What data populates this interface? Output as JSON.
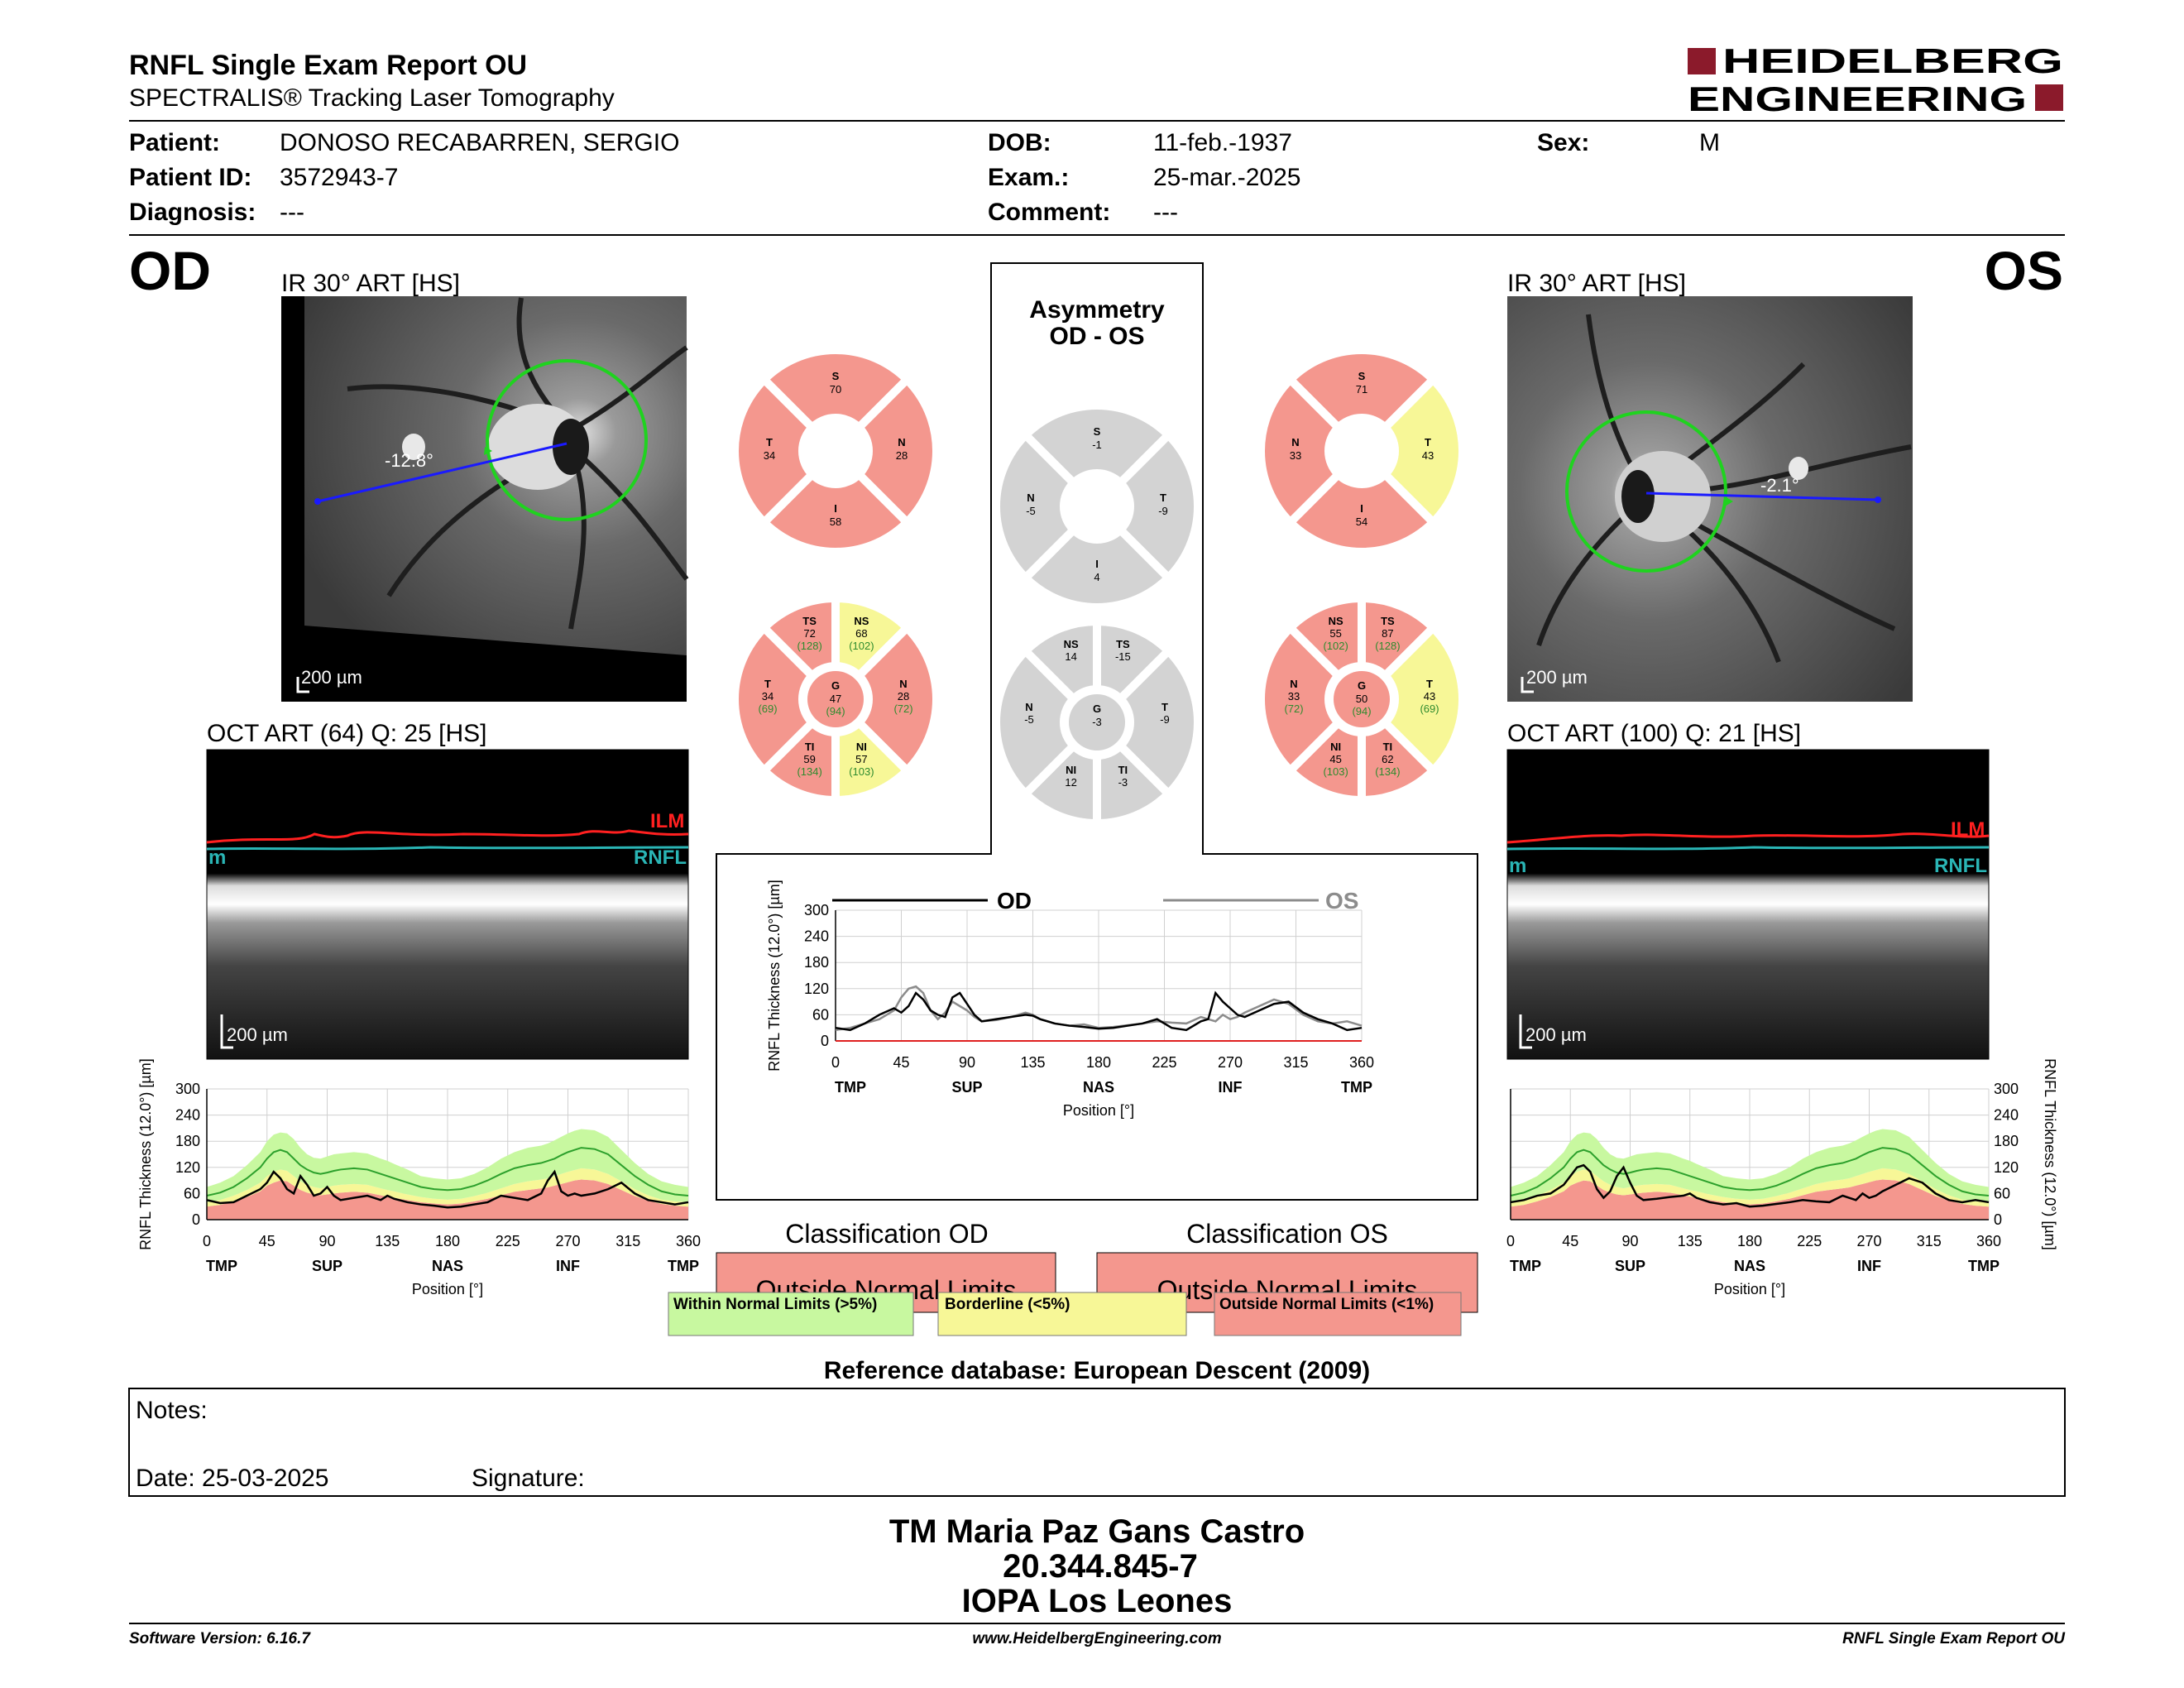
{
  "header": {
    "title": "RNFL Single Exam Report OU",
    "subtitle": "SPECTRALIS® Tracking Laser Tomography",
    "logo_line1": "HEIDELBERG",
    "logo_line2": "ENGINEERING",
    "logo_color": "#8b1a2b"
  },
  "patient": {
    "patient_label": "Patient:",
    "patient_value": "DONOSO RECABARREN, SERGIO",
    "id_label": "Patient ID:",
    "id_value": "3572943-7",
    "diag_label": "Diagnosis:",
    "diag_value": "---",
    "dob_label": "DOB:",
    "dob_value": "11-feb.-1937",
    "exam_label": "Exam.:",
    "exam_value": "25-mar.-2025",
    "comment_label": "Comment:",
    "comment_value": "---",
    "sex_label": "Sex:",
    "sex_value": "M"
  },
  "colors": {
    "red": "#f4978e",
    "yellow": "#f7f797",
    "green": "#c8f8a0",
    "gray": "#d3d3d3",
    "ilm": "#ff2020",
    "rnfl": "#2ab5b5",
    "normal_line": "#2ca02c",
    "od_line": "#000000",
    "os_line": "#8c8c8c"
  },
  "od": {
    "eye_label": "OD",
    "ir_title": "IR 30° ART [HS]",
    "angle": "-12.8°",
    "scale": "200 µm",
    "oct_title": "OCT ART (64) Q: 25 [HS]",
    "ilm": "ILM",
    "rnfl": "RNFL",
    "rnfl_left": "m",
    "oct_scale": "200 µm",
    "sectors4": {
      "S": "70",
      "N": "28",
      "I": "58",
      "T": "34"
    },
    "sectors6": {
      "TS": {
        "v": "72",
        "n": "(128)"
      },
      "NS": {
        "v": "68",
        "n": "(102)"
      },
      "N": {
        "v": "28",
        "n": "(72)"
      },
      "NI": {
        "v": "57",
        "n": "(103)"
      },
      "TI": {
        "v": "59",
        "n": "(134)"
      },
      "T": {
        "v": "34",
        "n": "(69)"
      },
      "G": {
        "v": "47",
        "n": "(94)"
      }
    }
  },
  "os": {
    "eye_label": "OS",
    "ir_title": "IR 30° ART [HS]",
    "angle": "-2.1°",
    "scale": "200 µm",
    "oct_title": "OCT ART (100) Q: 21 [HS]",
    "ilm": "ILM",
    "rnfl": "RNFL",
    "rnfl_left": "m",
    "oct_scale": "200 µm",
    "sectors4": {
      "S": "71",
      "N": "33",
      "I": "54",
      "T": "43"
    },
    "sectors6": {
      "NS": {
        "v": "55",
        "n": "(102)"
      },
      "TS": {
        "v": "87",
        "n": "(128)"
      },
      "T": {
        "v": "43",
        "n": "(69)"
      },
      "TI": {
        "v": "62",
        "n": "(134)"
      },
      "NI": {
        "v": "45",
        "n": "(103)"
      },
      "N": {
        "v": "33",
        "n": "(72)"
      },
      "G": {
        "v": "50",
        "n": "(94)"
      }
    }
  },
  "asym": {
    "title1": "Asymmetry",
    "title2": "OD - OS",
    "sectors4": {
      "S": "-1",
      "N": "-5",
      "I": "4",
      "T": "-9"
    },
    "sectors6": {
      "NS": "14",
      "TS": "-15",
      "T": "-9",
      "TI": "-3",
      "NI": "12",
      "N": "-5",
      "G": "-3"
    }
  },
  "labels": {
    "S": "S",
    "N": "N",
    "I": "I",
    "T": "T",
    "TS": "TS",
    "NS": "NS",
    "NI": "NI",
    "TI": "TI",
    "G": "G"
  },
  "chart_data": [
    {
      "type": "line",
      "name": "OD RNFL thickness profile",
      "ylabel": "RNFL Thickness (12.0°) [µm]",
      "xlabel": "Position [°]",
      "xlim": [
        0,
        360
      ],
      "ylim": [
        0,
        300
      ],
      "x_ticks": [
        0,
        45,
        90,
        135,
        180,
        225,
        270,
        315,
        360
      ],
      "y_ticks": [
        0,
        60,
        120,
        180,
        240,
        300
      ],
      "region_labels": [
        "TMP",
        "SUP",
        "NAS",
        "INF",
        "TMP"
      ],
      "region_positions": [
        0,
        90,
        180,
        270,
        360
      ],
      "x": [
        0,
        10,
        20,
        30,
        40,
        45,
        50,
        55,
        60,
        65,
        70,
        75,
        80,
        85,
        90,
        95,
        100,
        110,
        120,
        130,
        135,
        140,
        150,
        160,
        170,
        180,
        190,
        200,
        210,
        220,
        230,
        240,
        250,
        255,
        260,
        265,
        270,
        275,
        280,
        290,
        300,
        310,
        320,
        330,
        340,
        350,
        360
      ],
      "series": [
        {
          "name": "OD",
          "values": [
            45,
            38,
            40,
            55,
            70,
            85,
            110,
            95,
            70,
            60,
            100,
            80,
            55,
            60,
            75,
            55,
            45,
            50,
            55,
            45,
            55,
            48,
            40,
            35,
            32,
            28,
            30,
            35,
            40,
            55,
            50,
            45,
            60,
            90,
            110,
            65,
            55,
            60,
            55,
            60,
            70,
            85,
            60,
            45,
            40,
            35,
            40
          ]
        },
        {
          "name": "normal",
          "values": [
            55,
            62,
            75,
            95,
            120,
            140,
            155,
            160,
            155,
            140,
            125,
            115,
            108,
            105,
            108,
            112,
            115,
            118,
            115,
            105,
            100,
            95,
            85,
            75,
            70,
            68,
            70,
            78,
            90,
            105,
            118,
            125,
            130,
            135,
            140,
            148,
            155,
            160,
            165,
            162,
            150,
            125,
            100,
            80,
            65,
            58,
            55
          ]
        },
        {
          "name": "normal_upper",
          "values": [
            75,
            85,
            100,
            125,
            155,
            180,
            195,
            200,
            198,
            185,
            165,
            150,
            142,
            140,
            145,
            150,
            152,
            155,
            152,
            140,
            135,
            128,
            115,
            100,
            95,
            92,
            95,
            105,
            120,
            140,
            155,
            165,
            170,
            175,
            182,
            190,
            198,
            204,
            208,
            205,
            190,
            160,
            130,
            105,
            88,
            80,
            75
          ]
        },
        {
          "name": "normal_5pct",
          "values": [
            40,
            45,
            55,
            68,
            85,
            100,
            110,
            115,
            112,
            100,
            88,
            80,
            75,
            72,
            75,
            78,
            80,
            82,
            80,
            72,
            68,
            65,
            58,
            52,
            48,
            46,
            48,
            54,
            62,
            72,
            82,
            88,
            92,
            95,
            100,
            105,
            110,
            114,
            118,
            115,
            105,
            88,
            70,
            56,
            46,
            42,
            40
          ]
        },
        {
          "name": "normal_1pct",
          "values": [
            30,
            34,
            42,
            52,
            65,
            78,
            85,
            90,
            88,
            78,
            68,
            62,
            58,
            56,
            58,
            60,
            62,
            64,
            62,
            56,
            53,
            50,
            45,
            40,
            37,
            35,
            37,
            42,
            48,
            56,
            64,
            68,
            72,
            74,
            78,
            82,
            86,
            90,
            92,
            90,
            82,
            68,
            54,
            44,
            36,
            32,
            30
          ]
        }
      ]
    },
    {
      "type": "line",
      "name": "OS RNFL thickness profile",
      "ylabel": "RNFL Thickness (12.0°) [µm]",
      "xlabel": "Position [°]",
      "xlim": [
        0,
        360
      ],
      "ylim": [
        0,
        300
      ],
      "x_ticks": [
        0,
        45,
        90,
        135,
        180,
        225,
        270,
        315,
        360
      ],
      "y_ticks": [
        0,
        60,
        120,
        180,
        240,
        300
      ],
      "region_labels": [
        "TMP",
        "SUP",
        "NAS",
        "INF",
        "TMP"
      ],
      "region_positions": [
        0,
        90,
        180,
        270,
        360
      ],
      "x": [
        0,
        10,
        20,
        30,
        40,
        45,
        50,
        55,
        60,
        65,
        70,
        75,
        80,
        85,
        90,
        95,
        100,
        110,
        120,
        130,
        135,
        140,
        150,
        160,
        170,
        180,
        190,
        200,
        210,
        220,
        230,
        240,
        250,
        255,
        260,
        265,
        270,
        275,
        280,
        290,
        300,
        310,
        320,
        330,
        340,
        350,
        360
      ],
      "series": [
        {
          "name": "OS",
          "values": [
            40,
            45,
            55,
            60,
            80,
            100,
            120,
            125,
            110,
            70,
            50,
            65,
            100,
            120,
            85,
            55,
            45,
            48,
            52,
            55,
            60,
            50,
            40,
            35,
            38,
            30,
            32,
            36,
            40,
            45,
            42,
            40,
            55,
            50,
            45,
            60,
            50,
            55,
            65,
            80,
            95,
            85,
            60,
            45,
            40,
            45,
            40
          ]
        },
        {
          "name": "normal",
          "values": [
            55,
            62,
            75,
            95,
            120,
            140,
            155,
            160,
            155,
            140,
            125,
            115,
            108,
            105,
            108,
            112,
            115,
            118,
            115,
            105,
            100,
            95,
            85,
            75,
            70,
            68,
            70,
            78,
            90,
            105,
            118,
            125,
            130,
            135,
            140,
            148,
            155,
            160,
            165,
            162,
            150,
            125,
            100,
            80,
            65,
            58,
            55
          ]
        },
        {
          "name": "normal_upper",
          "values": [
            75,
            85,
            100,
            125,
            155,
            180,
            195,
            200,
            198,
            185,
            165,
            150,
            142,
            140,
            145,
            150,
            152,
            155,
            152,
            140,
            135,
            128,
            115,
            100,
            95,
            92,
            95,
            105,
            120,
            140,
            155,
            165,
            170,
            175,
            182,
            190,
            198,
            204,
            208,
            205,
            190,
            160,
            130,
            105,
            88,
            80,
            75
          ]
        },
        {
          "name": "normal_5pct",
          "values": [
            40,
            45,
            55,
            68,
            85,
            100,
            110,
            115,
            112,
            100,
            88,
            80,
            75,
            72,
            75,
            78,
            80,
            82,
            80,
            72,
            68,
            65,
            58,
            52,
            48,
            46,
            48,
            54,
            62,
            72,
            82,
            88,
            92,
            95,
            100,
            105,
            110,
            114,
            118,
            115,
            105,
            88,
            70,
            56,
            46,
            42,
            40
          ]
        },
        {
          "name": "normal_1pct",
          "values": [
            30,
            34,
            42,
            52,
            65,
            78,
            85,
            90,
            88,
            78,
            68,
            62,
            58,
            56,
            58,
            60,
            62,
            64,
            62,
            56,
            53,
            50,
            45,
            40,
            37,
            35,
            37,
            42,
            48,
            56,
            64,
            68,
            72,
            74,
            78,
            82,
            86,
            90,
            92,
            90,
            82,
            68,
            54,
            44,
            36,
            32,
            30
          ]
        }
      ]
    },
    {
      "type": "line",
      "name": "OD vs OS comparison",
      "ylabel": "RNFL Thickness (12.0°) [µm]",
      "xlabel": "Position [°]",
      "xlim": [
        0,
        360
      ],
      "ylim": [
        0,
        300
      ],
      "x_ticks": [
        0,
        45,
        90,
        135,
        180,
        225,
        270,
        315,
        360
      ],
      "y_ticks": [
        0,
        60,
        120,
        180,
        240,
        300
      ],
      "region_labels": [
        "TMP",
        "SUP",
        "NAS",
        "INF",
        "TMP"
      ],
      "region_positions": [
        0,
        90,
        180,
        270,
        360
      ],
      "legend": [
        "OD",
        "OS"
      ],
      "x": [
        0,
        10,
        20,
        30,
        40,
        45,
        50,
        55,
        60,
        65,
        70,
        75,
        80,
        85,
        90,
        95,
        100,
        110,
        120,
        130,
        135,
        140,
        150,
        160,
        170,
        180,
        190,
        200,
        210,
        220,
        230,
        240,
        250,
        255,
        260,
        265,
        270,
        275,
        280,
        290,
        300,
        310,
        320,
        330,
        340,
        350,
        360
      ],
      "series": [
        {
          "name": "OD",
          "values": [
            30,
            25,
            40,
            60,
            75,
            65,
            80,
            110,
            95,
            70,
            60,
            55,
            100,
            110,
            85,
            60,
            45,
            50,
            55,
            60,
            58,
            50,
            40,
            35,
            32,
            28,
            30,
            35,
            40,
            50,
            30,
            25,
            45,
            50,
            110,
            90,
            75,
            60,
            55,
            70,
            85,
            90,
            65,
            50,
            40,
            25,
            30
          ]
        },
        {
          "name": "OS",
          "values": [
            25,
            30,
            40,
            50,
            70,
            100,
            120,
            125,
            110,
            70,
            50,
            65,
            90,
            80,
            70,
            55,
            45,
            48,
            55,
            65,
            60,
            50,
            40,
            35,
            38,
            30,
            32,
            36,
            40,
            45,
            42,
            40,
            55,
            50,
            45,
            60,
            50,
            55,
            65,
            80,
            95,
            85,
            60,
            45,
            40,
            45,
            35
          ]
        }
      ]
    }
  ],
  "comparison": {
    "legend_od": "OD",
    "legend_os": "OS"
  },
  "classification": {
    "od_title": "Classification OD",
    "od_value": "Outside Normal Limits",
    "os_title": "Classification OS",
    "os_value": "Outside Normal Limits",
    "legend_green": "Within Normal Limits (>5%)",
    "legend_yellow": "Borderline (<5%)",
    "legend_red": "Outside Normal Limits (<1%)"
  },
  "reference": "Reference database: European Descent (2009)",
  "notes": {
    "notes_label": "Notes:",
    "date_label": "Date: 25-03-2025",
    "signature_label": "Signature:"
  },
  "signature": {
    "name": "TM Maria Paz Gans Castro",
    "rut": "20.344.845-7",
    "institution": "IOPA Los Leones"
  },
  "footer": {
    "version": "Software Version: 6.16.7",
    "url": "www.HeidelbergEngineering.com",
    "report": "RNFL Single Exam Report OU"
  }
}
